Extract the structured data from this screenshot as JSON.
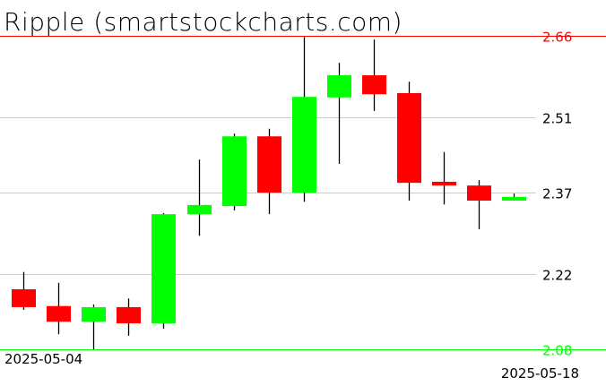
{
  "chart_data": {
    "type": "candlestick",
    "title": "Ripple (smartstockcharts.com)",
    "x_start_label": "2025-05-04",
    "x_end_label": "2025-05-18",
    "dates": [
      "2025-05-04",
      "2025-05-05",
      "2025-05-06",
      "2025-05-07",
      "2025-05-08",
      "2025-05-09",
      "2025-05-10",
      "2025-05-11",
      "2025-05-12",
      "2025-05-13",
      "2025-05-14",
      "2025-05-15",
      "2025-05-16",
      "2025-05-17",
      "2025-05-18"
    ],
    "candles": [
      {
        "open": 2.191,
        "high": 2.223,
        "low": 2.153,
        "close": 2.158
      },
      {
        "open": 2.16,
        "high": 2.203,
        "low": 2.108,
        "close": 2.131
      },
      {
        "open": 2.131,
        "high": 2.163,
        "low": 2.08,
        "close": 2.158
      },
      {
        "open": 2.158,
        "high": 2.174,
        "low": 2.105,
        "close": 2.128
      },
      {
        "open": 2.128,
        "high": 2.332,
        "low": 2.118,
        "close": 2.33
      },
      {
        "open": 2.33,
        "high": 2.431,
        "low": 2.29,
        "close": 2.347
      },
      {
        "open": 2.345,
        "high": 2.479,
        "low": 2.337,
        "close": 2.474
      },
      {
        "open": 2.474,
        "high": 2.488,
        "low": 2.33,
        "close": 2.37
      },
      {
        "open": 2.37,
        "high": 2.658,
        "low": 2.353,
        "close": 2.547
      },
      {
        "open": 2.546,
        "high": 2.61,
        "low": 2.423,
        "close": 2.587
      },
      {
        "open": 2.587,
        "high": 2.653,
        "low": 2.521,
        "close": 2.552
      },
      {
        "open": 2.554,
        "high": 2.575,
        "low": 2.355,
        "close": 2.388
      },
      {
        "open": 2.39,
        "high": 2.445,
        "low": 2.348,
        "close": 2.383
      },
      {
        "open": 2.383,
        "high": 2.393,
        "low": 2.302,
        "close": 2.355
      },
      {
        "open": 2.355,
        "high": 2.368,
        "low": 2.357,
        "close": 2.362
      }
    ],
    "ylim": [
      2.08,
      2.66
    ],
    "y_ticks": [
      "2.66",
      "2.51",
      "2.37",
      "2.22",
      "2.08"
    ],
    "high_line": "2.66",
    "low_line": "2.08",
    "grid": true,
    "colors": {
      "up": "#00ff00",
      "down": "#ff0000",
      "wick": "#000000",
      "grid": "#cccccc",
      "high_line": "#ff0000",
      "low_line": "#00ff00"
    }
  }
}
